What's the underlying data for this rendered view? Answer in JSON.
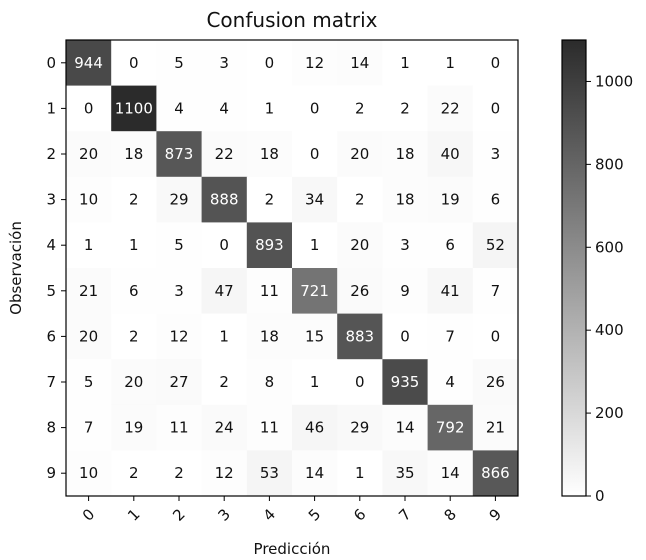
{
  "chart_data": {
    "type": "heatmap",
    "title": "Confusion matrix",
    "xlabel": "Predicción",
    "ylabel": "Observación",
    "x_categories": [
      "0",
      "1",
      "2",
      "3",
      "4",
      "5",
      "6",
      "7",
      "8",
      "9"
    ],
    "y_categories": [
      "0",
      "1",
      "2",
      "3",
      "4",
      "5",
      "6",
      "7",
      "8",
      "9"
    ],
    "matrix": [
      [
        944,
        0,
        5,
        3,
        0,
        12,
        14,
        1,
        1,
        0
      ],
      [
        0,
        1100,
        4,
        4,
        1,
        0,
        2,
        2,
        22,
        0
      ],
      [
        20,
        18,
        873,
        22,
        18,
        0,
        20,
        18,
        40,
        3
      ],
      [
        10,
        2,
        29,
        888,
        2,
        34,
        2,
        18,
        19,
        6
      ],
      [
        1,
        1,
        5,
        0,
        893,
        1,
        20,
        3,
        6,
        52
      ],
      [
        21,
        6,
        3,
        47,
        11,
        721,
        26,
        9,
        41,
        7
      ],
      [
        20,
        2,
        12,
        1,
        18,
        15,
        883,
        0,
        7,
        0
      ],
      [
        5,
        20,
        27,
        2,
        8,
        1,
        0,
        935,
        4,
        26
      ],
      [
        7,
        19,
        11,
        24,
        11,
        46,
        29,
        14,
        792,
        21
      ],
      [
        10,
        2,
        2,
        12,
        53,
        14,
        1,
        35,
        14,
        866
      ]
    ],
    "colormap": "greys",
    "color_min": "#ffffff",
    "color_max": "#2b2b2b",
    "colorbar": {
      "range": [
        0,
        1100
      ],
      "ticks": [
        0,
        200,
        400,
        600,
        800,
        1000
      ]
    },
    "grid": false
  }
}
